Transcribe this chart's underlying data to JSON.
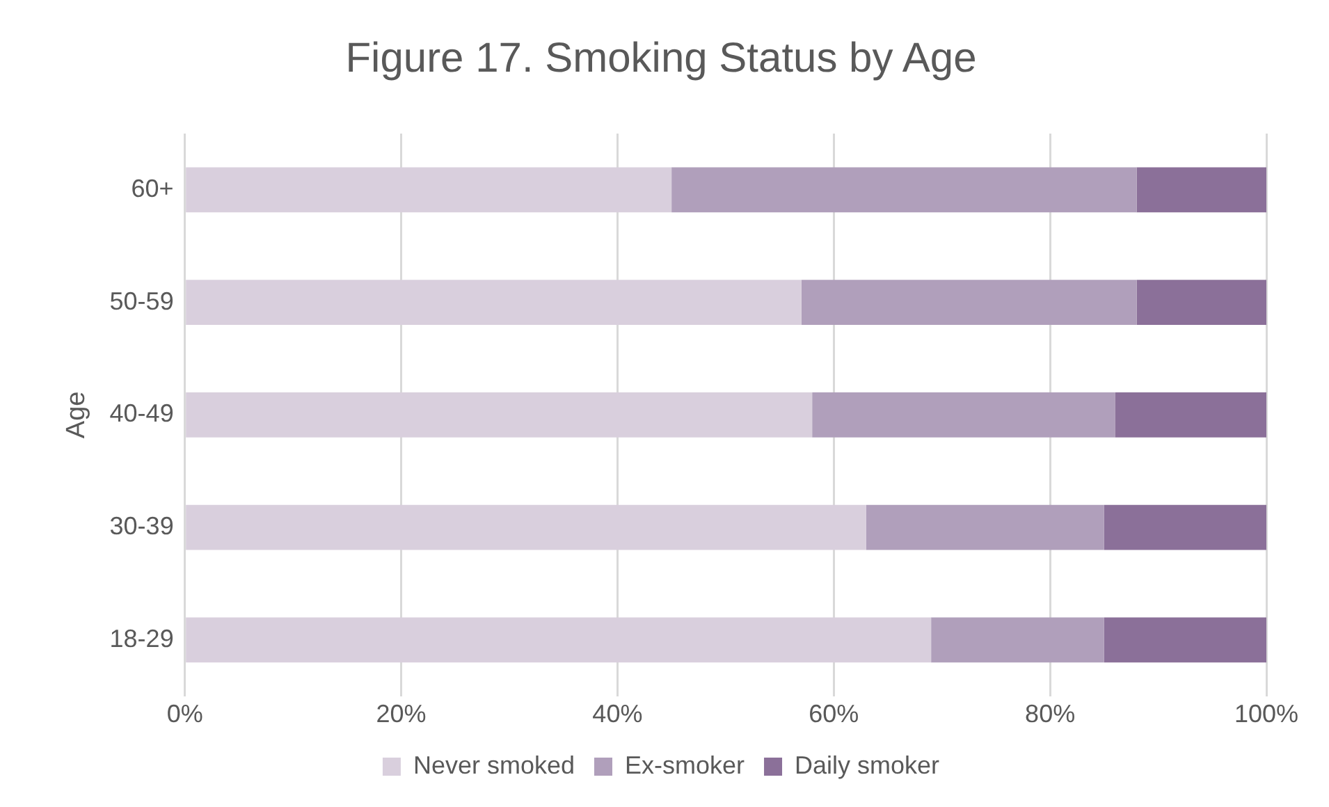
{
  "chart_data": {
    "type": "bar",
    "title": "Figure 17. Smoking Status by Age",
    "ylabel": "Age",
    "orientation": "horizontal",
    "stacked": true,
    "categories": [
      "60+",
      "50-59",
      "40-49",
      "30-39",
      "18-29"
    ],
    "series": [
      {
        "name": "Never smoked",
        "color": "#d9cfdd",
        "values": [
          45,
          57,
          58,
          63,
          69
        ]
      },
      {
        "name": "Ex-smoker",
        "color": "#b09fbb",
        "values": [
          43,
          31,
          28,
          22,
          16
        ]
      },
      {
        "name": "Daily smoker",
        "color": "#8b7099",
        "values": [
          12,
          12,
          14,
          15,
          15
        ]
      }
    ],
    "xlim": [
      0,
      100
    ],
    "xticks": [
      {
        "value": 0,
        "label": "0%"
      },
      {
        "value": 20,
        "label": "20%"
      },
      {
        "value": 40,
        "label": "40%"
      },
      {
        "value": 60,
        "label": "60%"
      },
      {
        "value": 80,
        "label": "80%"
      },
      {
        "value": 100,
        "label": "100%"
      }
    ],
    "grid": "x",
    "legend": "bottom"
  }
}
